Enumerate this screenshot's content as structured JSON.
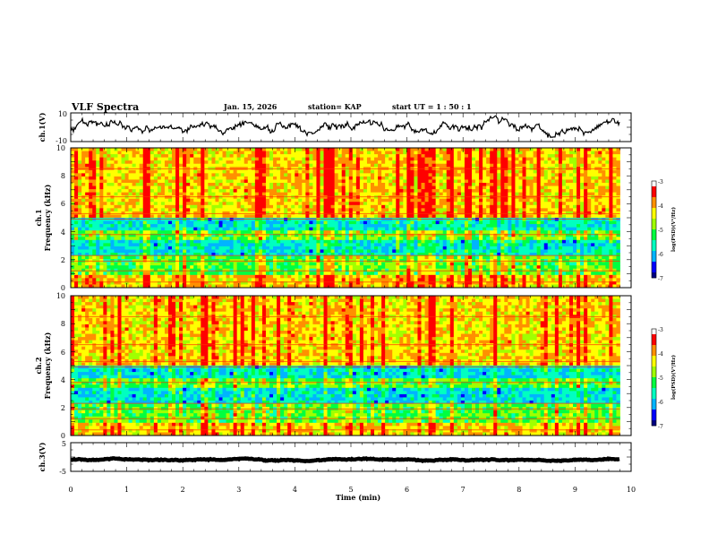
{
  "header": {
    "title": "VLF Spectra",
    "date": "Jan. 15, 2026",
    "station": "station= KAP",
    "start": "start  UT =   1 : 50 : 1"
  },
  "colors": {
    "axis": "#000000",
    "trace": "#000000",
    "colormap": [
      "#000080",
      "#0000ff",
      "#00b4ff",
      "#00ffc0",
      "#00ff40",
      "#a0ff00",
      "#ffff00",
      "#ff9000",
      "#ff0000",
      "#ffffff"
    ]
  },
  "chart_data": [
    {
      "type": "line",
      "name": "ch1-waveform",
      "ylabel": "ch.1(V)",
      "ylim": [
        -10,
        10
      ],
      "yticks": [
        "10",
        "-10"
      ],
      "xlim": [
        0,
        10
      ],
      "series_summary": {
        "mean": 0,
        "amplitude": 5,
        "data_end_min": 9.8
      }
    },
    {
      "type": "heatmap",
      "name": "ch1-spectrogram",
      "ylabel_line1": "ch.1",
      "ylabel_line2": "Frequency (kHz)",
      "ylim": [
        0,
        10
      ],
      "yticks": [
        "0",
        "2",
        "4",
        "6",
        "8",
        "10"
      ],
      "xlim": [
        0,
        10
      ],
      "data_end_min": 9.8,
      "colorbar": {
        "label": "log(PSD)(V²/Hz)",
        "range": [
          -7,
          -3
        ],
        "ticks": [
          "-3",
          "-4",
          "-5",
          "-6",
          "-7"
        ]
      },
      "bands_khz": [
        {
          "from": 0,
          "to": 0.8,
          "level": "high"
        },
        {
          "from": 0.8,
          "to": 2.2,
          "level": "medium"
        },
        {
          "from": 2.2,
          "to": 3.5,
          "level": "low"
        },
        {
          "from": 3.5,
          "to": 4.2,
          "level": "medium"
        },
        {
          "from": 4.2,
          "to": 5.0,
          "level": "low"
        },
        {
          "from": 5.0,
          "to": 10,
          "level": "high"
        }
      ]
    },
    {
      "type": "heatmap",
      "name": "ch2-spectrogram",
      "ylabel_line1": "ch.2",
      "ylabel_line2": "Frequency (kHz)",
      "ylim": [
        0,
        10
      ],
      "yticks": [
        "0",
        "2",
        "4",
        "6",
        "8",
        "10"
      ],
      "xlim": [
        0,
        10
      ],
      "data_end_min": 9.8,
      "colorbar": {
        "label": "log(PSD)(V²/Hz)",
        "range": [
          -7,
          -3
        ],
        "ticks": [
          "-3",
          "-4",
          "-5",
          "-6",
          "-7"
        ]
      },
      "bands_khz": [
        {
          "from": 0,
          "to": 0.8,
          "level": "high"
        },
        {
          "from": 0.8,
          "to": 2.2,
          "level": "medium"
        },
        {
          "from": 2.2,
          "to": 3.5,
          "level": "low"
        },
        {
          "from": 3.5,
          "to": 4.2,
          "level": "medium"
        },
        {
          "from": 4.2,
          "to": 5.0,
          "level": "low"
        },
        {
          "from": 5.0,
          "to": 10,
          "level": "high"
        }
      ]
    },
    {
      "type": "line",
      "name": "ch3-waveform",
      "ylabel": "ch.3(V)",
      "ylim": [
        -5,
        5
      ],
      "yticks": [
        "5",
        "-5"
      ],
      "xlim": [
        0,
        10
      ],
      "series_summary": {
        "mean": -1,
        "amplitude": 0.3,
        "data_end_min": 9.8
      }
    }
  ],
  "time_axis": {
    "label": "Time  (min)",
    "ticks": [
      "0",
      "1",
      "2",
      "3",
      "4",
      "5",
      "6",
      "7",
      "8",
      "9",
      "10"
    ]
  }
}
